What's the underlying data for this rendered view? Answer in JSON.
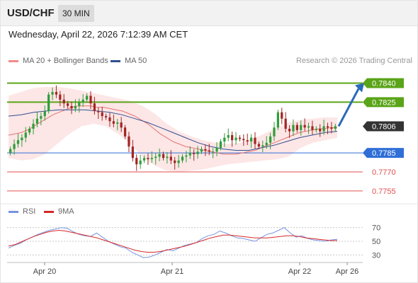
{
  "header": {
    "symbol": "USD/CHF",
    "timeframe": "30 MIN"
  },
  "timestamp": "Wednesday, April 22, 2026 7:12:39 AM CET",
  "legend": {
    "ma20_label": "MA 20 + Bollinger Bands",
    "ma50_label": "MA 50",
    "rsi_label": "RSI",
    "rsi_ma_label": "9MA"
  },
  "credit": "Research © 2026 Trading Central",
  "colors": {
    "bull": "#2e9e3a",
    "bear": "#a32525",
    "ma20": "#e57373",
    "ma50": "#2f4f8f",
    "band_fill": "#fde2e2",
    "resistance": "#5aa418",
    "pivot": "#2f6fd6",
    "support": "#e05050",
    "current": "#333333",
    "arrow": "#2a6ab8",
    "rsi": "#7593e0",
    "rsi_ma": "#d62828"
  },
  "chart_data": [
    {
      "type": "candlestick",
      "title": "USD/CHF 30 MIN",
      "x_ticks": [
        "Apr 20",
        "Apr 21",
        "Apr 22",
        "Apr 26"
      ],
      "ylim": [
        0.7746,
        0.7852
      ],
      "levels": [
        {
          "label": "0.7840",
          "value": 0.784,
          "kind": "resistance"
        },
        {
          "label": "0.7825",
          "value": 0.7825,
          "kind": "resistance"
        },
        {
          "label": "0.7806",
          "value": 0.7806,
          "kind": "current"
        },
        {
          "label": "0.7785",
          "value": 0.7785,
          "kind": "pivot"
        },
        {
          "label": "0.7770",
          "value": 0.777,
          "kind": "support"
        },
        {
          "label": "0.7755",
          "value": 0.7755,
          "kind": "support"
        }
      ],
      "closes": [
        0.7788,
        0.7792,
        0.7795,
        0.7797,
        0.7801,
        0.7804,
        0.7808,
        0.7812,
        0.7814,
        0.7818,
        0.7831,
        0.7833,
        0.7831,
        0.7827,
        0.7824,
        0.7822,
        0.782,
        0.7822,
        0.7825,
        0.7827,
        0.783,
        0.7824,
        0.7818,
        0.7817,
        0.7814,
        0.7813,
        0.781,
        0.7808,
        0.7809,
        0.7805,
        0.7798,
        0.779,
        0.7781,
        0.7776,
        0.7779,
        0.7781,
        0.778,
        0.7781,
        0.7782,
        0.7784,
        0.7781,
        0.7782,
        0.7779,
        0.7777,
        0.7779,
        0.7782,
        0.7783,
        0.7785,
        0.7784,
        0.7786,
        0.7788,
        0.7787,
        0.7786,
        0.7786,
        0.7789,
        0.7794,
        0.7797,
        0.7799,
        0.7795,
        0.7797,
        0.7796,
        0.7795,
        0.7794,
        0.7797,
        0.7792,
        0.779,
        0.7791,
        0.7793,
        0.7798,
        0.7805,
        0.7817,
        0.7812,
        0.7804,
        0.7802,
        0.7807,
        0.7803,
        0.7807,
        0.7805,
        0.7806,
        0.7803,
        0.7804,
        0.7802,
        0.7806,
        0.7805,
        0.7804,
        0.7806
      ],
      "ma20": [
        0.7799,
        0.78,
        0.7801,
        0.7803,
        0.7806,
        0.7809,
        0.7812,
        0.7815,
        0.7817,
        0.7819,
        0.7821,
        0.7822,
        0.7822,
        0.7822,
        0.7821,
        0.7821,
        0.782,
        0.7819,
        0.7818,
        0.7816,
        0.7814,
        0.7811,
        0.7808,
        0.7804,
        0.78,
        0.7797,
        0.7794,
        0.7792,
        0.779,
        0.7789,
        0.7788,
        0.7787,
        0.7786,
        0.7785,
        0.7784,
        0.7784,
        0.7784,
        0.7785,
        0.7786,
        0.7787,
        0.7789,
        0.7791,
        0.7793,
        0.7795,
        0.7797,
        0.7799,
        0.7801,
        0.7802,
        0.7803,
        0.7804,
        0.7804,
        0.7805,
        0.7805
      ],
      "ma20_start_index": 0,
      "bollinger_upper": [
        0.783,
        0.7833,
        0.7836,
        0.7837,
        0.7837,
        0.7836,
        0.7834,
        0.7832,
        0.783,
        0.7828,
        0.7826,
        0.7822,
        0.7816,
        0.7808,
        0.7802,
        0.7798,
        0.7795,
        0.7793,
        0.7792,
        0.7793,
        0.7796,
        0.78,
        0.7805,
        0.7809,
        0.7811,
        0.7812,
        0.7813,
        0.7813
      ],
      "bollinger_lower": [
        0.7781,
        0.7779,
        0.778,
        0.7784,
        0.7792,
        0.78,
        0.7806,
        0.7808,
        0.7806,
        0.78,
        0.7792,
        0.7782,
        0.7775,
        0.7771,
        0.777,
        0.7771,
        0.7772,
        0.7774,
        0.7776,
        0.7777,
        0.7778,
        0.7779,
        0.778,
        0.7782,
        0.7789,
        0.7793,
        0.7795,
        0.7797
      ],
      "ma50": [
        0.7814,
        0.7815,
        0.7817,
        0.7818,
        0.7819,
        0.7819,
        0.7819,
        0.7818,
        0.7817,
        0.7815,
        0.7812,
        0.7809,
        0.7805,
        0.7801,
        0.7797,
        0.7793,
        0.779,
        0.7788,
        0.7787,
        0.7787,
        0.7789,
        0.7791,
        0.7794,
        0.7797,
        0.7799,
        0.7801,
        0.7802
      ],
      "projection": {
        "from": 0.7806,
        "to": 0.784
      }
    },
    {
      "type": "line",
      "title": "RSI",
      "y_ticks": [
        "70",
        "50",
        "30"
      ],
      "ylim": [
        20,
        80
      ],
      "rsi": [
        40,
        44,
        47,
        52,
        56,
        60,
        63,
        66,
        68,
        70,
        69,
        64,
        60,
        58,
        57,
        62,
        56,
        50,
        46,
        42,
        40,
        34,
        30,
        26,
        27,
        30,
        34,
        38,
        36,
        40,
        44,
        46,
        48,
        54,
        58,
        60,
        65,
        62,
        58,
        55,
        54,
        52,
        50,
        55,
        60,
        62,
        66,
        70,
        62,
        56,
        58,
        54,
        52,
        51,
        50,
        52,
        53
      ],
      "rsi_ma": [
        43,
        45,
        49,
        53,
        57,
        60,
        63,
        65,
        66,
        65,
        63,
        61,
        59,
        57,
        55,
        52,
        49,
        46,
        43,
        40,
        37,
        35,
        34,
        34,
        35,
        37,
        39,
        41,
        43,
        46,
        49,
        52,
        55,
        57,
        59,
        59,
        58,
        57,
        56,
        55,
        55,
        55,
        56,
        57,
        58,
        58,
        57,
        55,
        54,
        53,
        52,
        51,
        51
      ]
    }
  ]
}
